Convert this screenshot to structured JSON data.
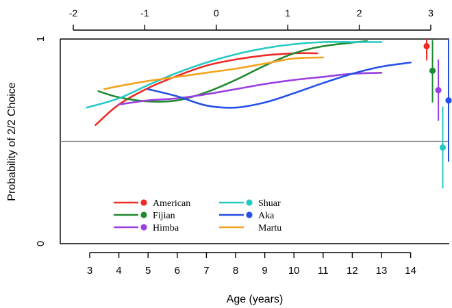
{
  "chart_data": {
    "type": "line",
    "xlabel": "Age (years)",
    "ylabel": "Probability of 2/2 Choice",
    "xlim": [
      2.4,
      15.3
    ],
    "ylim": [
      0,
      1
    ],
    "x_ticks": [
      "3",
      "4",
      "5",
      "6",
      "7",
      "8",
      "9",
      "10",
      "11",
      "12",
      "13",
      "14"
    ],
    "y_ticks": [
      "0",
      "1"
    ],
    "top_axis": {
      "range": [
        -2,
        3
      ],
      "ticks": [
        "-2",
        "-1",
        "0",
        "1",
        "2",
        "3"
      ]
    },
    "reference_line": 0.5,
    "legend_position": "bottom-left",
    "series": [
      {
        "name": "American",
        "color": "#ee2a24",
        "x": [
          3.2,
          4,
          5,
          6,
          7,
          8,
          9,
          10,
          10.8
        ],
        "y": [
          0.58,
          0.68,
          0.76,
          0.82,
          0.87,
          0.9,
          0.92,
          0.93,
          0.93
        ],
        "point": {
          "x": 14.55,
          "y": 0.965,
          "low": 0.895,
          "high": 1.0
        }
      },
      {
        "name": "Fijian",
        "color": "#1f8a2e",
        "x": [
          3.3,
          4,
          5,
          6,
          7,
          8,
          9,
          10,
          11,
          12.5
        ],
        "y": [
          0.745,
          0.715,
          0.695,
          0.7,
          0.74,
          0.8,
          0.87,
          0.93,
          0.965,
          0.99
        ],
        "point": {
          "x": 14.75,
          "y": 0.845,
          "low": 0.69,
          "high": 0.995
        }
      },
      {
        "name": "Himba",
        "color": "#9a3fe0",
        "x": [
          4,
          5,
          6,
          7,
          8,
          9,
          10,
          11,
          12,
          13
        ],
        "y": [
          0.68,
          0.7,
          0.71,
          0.73,
          0.755,
          0.78,
          0.8,
          0.815,
          0.83,
          0.835
        ],
        "point": {
          "x": 14.95,
          "y": 0.75,
          "low": 0.6,
          "high": 0.9
        }
      },
      {
        "name": "Shuar",
        "color": "#25c9c4",
        "x": [
          2.9,
          4,
          5,
          6,
          7,
          8,
          9,
          10,
          11,
          12,
          13
        ],
        "y": [
          0.665,
          0.71,
          0.775,
          0.835,
          0.885,
          0.925,
          0.955,
          0.975,
          0.985,
          0.985,
          0.985
        ],
        "point": {
          "x": 15.1,
          "y": 0.47,
          "low": 0.27,
          "high": 0.67
        }
      },
      {
        "name": "Aka",
        "color": "#2550e8",
        "x": [
          5,
          6,
          7,
          8,
          9,
          10,
          11,
          12,
          13,
          14
        ],
        "y": [
          0.755,
          0.72,
          0.675,
          0.665,
          0.69,
          0.735,
          0.785,
          0.83,
          0.865,
          0.885
        ],
        "point": {
          "x": 15.3,
          "y": 0.7,
          "low": 0.4,
          "high": 1.0
        }
      },
      {
        "name": "Martu",
        "color": "#f5a21d",
        "x": [
          3.5,
          4,
          5,
          6,
          7,
          8,
          9,
          10,
          11
        ],
        "y": [
          0.755,
          0.77,
          0.795,
          0.815,
          0.835,
          0.855,
          0.88,
          0.905,
          0.91
        ]
      }
    ]
  }
}
